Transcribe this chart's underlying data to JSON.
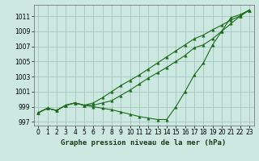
{
  "xlabel": "Graphe pression niveau de la mer (hPa)",
  "hours": [
    0,
    1,
    2,
    3,
    4,
    5,
    6,
    7,
    8,
    9,
    10,
    11,
    12,
    13,
    14,
    15,
    16,
    17,
    18,
    19,
    20,
    21,
    22,
    23
  ],
  "line1": [
    998.2,
    998.8,
    998.5,
    999.2,
    999.5,
    999.2,
    999.0,
    998.8,
    998.6,
    998.3,
    998.0,
    997.7,
    997.5,
    997.3,
    997.3,
    999.0,
    1001.0,
    1003.2,
    1004.8,
    1007.2,
    1009.0,
    1010.8,
    1011.2,
    1011.8
  ],
  "line2": [
    998.2,
    998.8,
    998.5,
    999.2,
    999.5,
    999.2,
    999.5,
    1000.2,
    1001.0,
    1001.8,
    1002.5,
    1003.2,
    1004.0,
    1004.8,
    1005.6,
    1006.4,
    1007.2,
    1008.0,
    1008.5,
    1009.2,
    1009.8,
    1010.5,
    1011.0,
    1011.8
  ],
  "line3": [
    998.2,
    998.8,
    998.5,
    999.2,
    999.5,
    999.2,
    999.2,
    999.5,
    999.8,
    1000.5,
    1001.2,
    1002.0,
    1002.8,
    1003.5,
    1004.2,
    1005.0,
    1005.8,
    1006.8,
    1007.2,
    1008.0,
    1009.0,
    1010.0,
    1011.0,
    1011.8
  ],
  "line_color": "#1a6b1a",
  "bg_color": "#cce8e0",
  "grid_color": "#9fbfb8",
  "ylim": [
    996.5,
    1012.5
  ],
  "xlim": [
    -0.5,
    23.5
  ],
  "yticks": [
    997,
    999,
    1001,
    1003,
    1005,
    1007,
    1009,
    1011
  ],
  "xticks": [
    0,
    1,
    2,
    3,
    4,
    5,
    6,
    7,
    8,
    9,
    10,
    11,
    12,
    13,
    14,
    15,
    16,
    17,
    18,
    19,
    20,
    21,
    22,
    23
  ],
  "marker": "^",
  "markersize": 2.5,
  "linewidth": 0.8,
  "fontsize_label": 6.5,
  "fontsize_tick": 5.5
}
